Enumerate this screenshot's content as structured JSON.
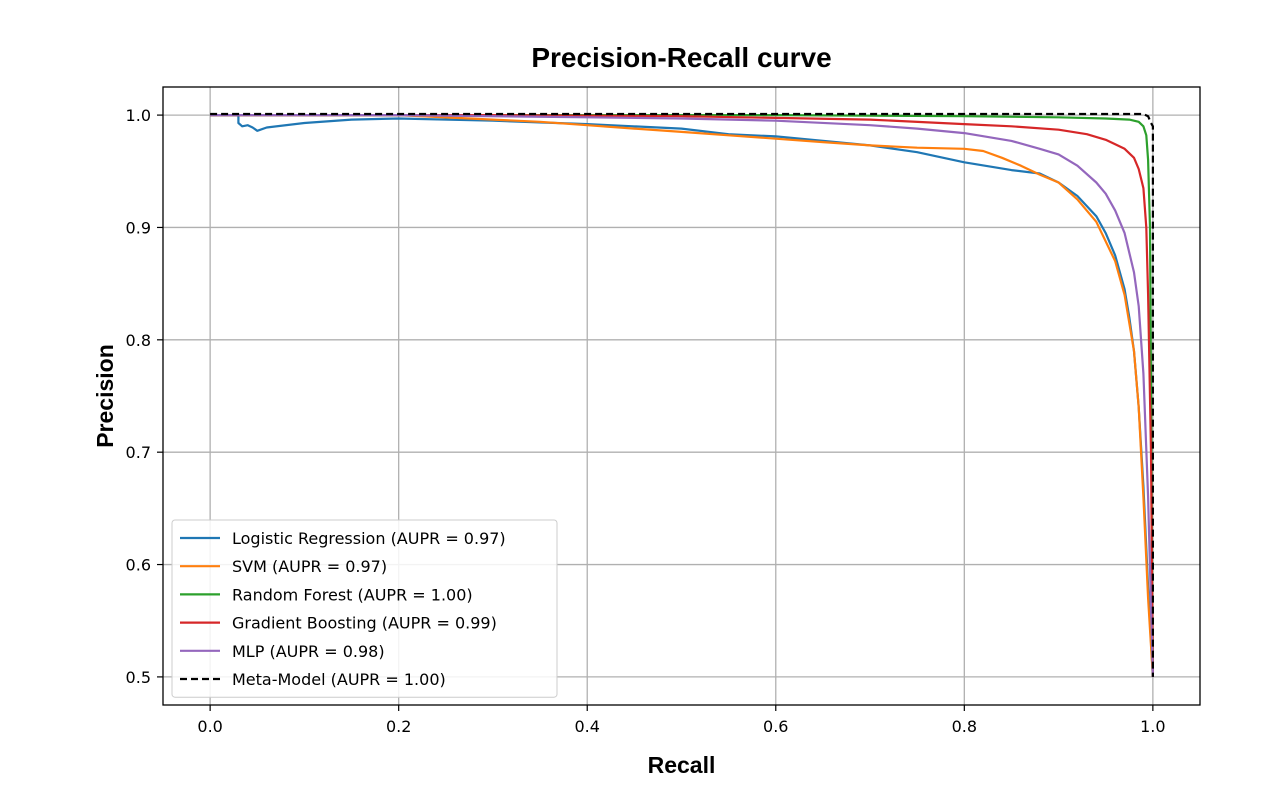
{
  "chart_data": {
    "type": "line",
    "title": "Precision-Recall curve",
    "xlabel": "Recall",
    "ylabel": "Precision",
    "xlim": [
      -0.05,
      1.05
    ],
    "ylim": [
      0.475,
      1.025
    ],
    "xticks": [
      0.0,
      0.2,
      0.4,
      0.6,
      0.8,
      1.0
    ],
    "xtick_labels": [
      "0.0",
      "0.2",
      "0.4",
      "0.6",
      "0.8",
      "1.0"
    ],
    "yticks": [
      0.5,
      0.6,
      0.7,
      0.8,
      0.9,
      1.0
    ],
    "ytick_labels": [
      "0.5",
      "0.6",
      "0.7",
      "0.8",
      "0.9",
      "1.0"
    ],
    "grid": true,
    "legend_position": "lower-left",
    "series": [
      {
        "name": "Logistic Regression (AUPR = 0.97)",
        "color": "#1f77b4",
        "dash": "solid",
        "x": [
          0.0,
          0.03,
          0.03,
          0.034,
          0.04,
          0.045,
          0.05,
          0.06,
          0.1,
          0.15,
          0.2,
          0.3,
          0.4,
          0.5,
          0.55,
          0.6,
          0.65,
          0.7,
          0.75,
          0.8,
          0.85,
          0.88,
          0.9,
          0.92,
          0.94,
          0.95,
          0.96,
          0.97,
          0.975,
          0.98,
          0.985,
          0.99,
          0.995,
          1.0
        ],
        "y": [
          1.0,
          1.0,
          0.993,
          0.99,
          0.991,
          0.989,
          0.986,
          0.989,
          0.993,
          0.996,
          0.997,
          0.995,
          0.992,
          0.988,
          0.983,
          0.981,
          0.977,
          0.973,
          0.967,
          0.958,
          0.951,
          0.948,
          0.94,
          0.928,
          0.91,
          0.895,
          0.875,
          0.845,
          0.82,
          0.79,
          0.74,
          0.67,
          0.58,
          0.5
        ]
      },
      {
        "name": "SVM (AUPR = 0.97)",
        "color": "#ff7f0e",
        "dash": "solid",
        "x": [
          0.0,
          0.1,
          0.2,
          0.3,
          0.35,
          0.4,
          0.45,
          0.5,
          0.55,
          0.6,
          0.65,
          0.7,
          0.75,
          0.8,
          0.82,
          0.84,
          0.86,
          0.88,
          0.9,
          0.92,
          0.94,
          0.96,
          0.97,
          0.98,
          0.985,
          0.99,
          0.995,
          1.0
        ],
        "y": [
          1.0,
          1.0,
          1.0,
          0.996,
          0.994,
          0.991,
          0.988,
          0.985,
          0.982,
          0.979,
          0.976,
          0.973,
          0.971,
          0.97,
          0.968,
          0.962,
          0.955,
          0.947,
          0.94,
          0.925,
          0.905,
          0.87,
          0.84,
          0.79,
          0.74,
          0.66,
          0.57,
          0.5
        ]
      },
      {
        "name": "Random Forest (AUPR = 1.00)",
        "color": "#2ca02c",
        "dash": "solid",
        "x": [
          0.0,
          0.3,
          0.6,
          0.8,
          0.9,
          0.95,
          0.975,
          0.985,
          0.99,
          0.993,
          0.995,
          0.997,
          1.0
        ],
        "y": [
          1.0,
          1.0,
          1.0,
          0.999,
          0.998,
          0.997,
          0.996,
          0.994,
          0.99,
          0.982,
          0.96,
          0.9,
          0.5
        ]
      },
      {
        "name": "Gradient Boosting (AUPR = 0.99)",
        "color": "#d62728",
        "dash": "solid",
        "x": [
          0.0,
          0.3,
          0.5,
          0.7,
          0.8,
          0.85,
          0.9,
          0.93,
          0.95,
          0.96,
          0.97,
          0.98,
          0.985,
          0.99,
          0.993,
          0.995,
          0.998,
          1.0
        ],
        "y": [
          1.0,
          1.0,
          0.999,
          0.996,
          0.992,
          0.99,
          0.987,
          0.983,
          0.978,
          0.974,
          0.97,
          0.962,
          0.952,
          0.935,
          0.9,
          0.84,
          0.7,
          0.5
        ]
      },
      {
        "name": "MLP (AUPR = 0.98)",
        "color": "#9467bd",
        "dash": "solid",
        "x": [
          0.0,
          0.2,
          0.4,
          0.5,
          0.6,
          0.7,
          0.75,
          0.8,
          0.85,
          0.88,
          0.9,
          0.92,
          0.94,
          0.95,
          0.96,
          0.97,
          0.98,
          0.985,
          0.99,
          0.995,
          1.0
        ],
        "y": [
          1.0,
          1.0,
          0.998,
          0.997,
          0.995,
          0.991,
          0.988,
          0.984,
          0.977,
          0.97,
          0.965,
          0.955,
          0.94,
          0.93,
          0.915,
          0.895,
          0.86,
          0.83,
          0.77,
          0.66,
          0.5
        ]
      },
      {
        "name": "Meta-Model (AUPR = 1.00)",
        "color": "#000000",
        "dash": "dashed",
        "x": [
          0.0,
          0.5,
          0.99,
          0.995,
          0.998,
          1.0,
          1.0
        ],
        "y": [
          1.001,
          1.001,
          1.001,
          0.999,
          0.993,
          0.99,
          0.5
        ]
      }
    ]
  }
}
